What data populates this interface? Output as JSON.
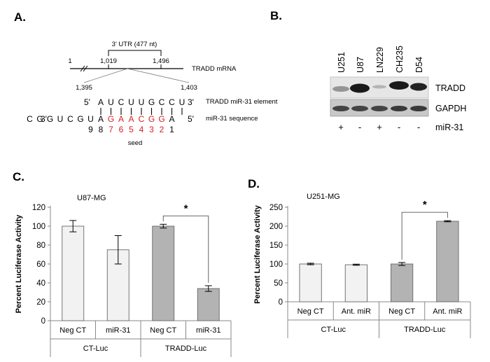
{
  "panel_a": {
    "letter": "A.",
    "utr_label": "3' UTR (477 nt)",
    "mrna_label": "TRADD mRNA",
    "pos_1": "1",
    "pos_1019": "1,019",
    "pos_1496": "1,496",
    "pos_1395": "1,395",
    "pos_1403": "1,403",
    "five_prime": "5'",
    "three_prime": "3'",
    "three_prime_left": "3'",
    "five_prime_right": "5'",
    "tradd_seq": [
      "A",
      "U",
      "C",
      "U",
      "U",
      "G",
      "C",
      "C",
      "U"
    ],
    "mir_seq_black": [
      "C",
      "G",
      "G",
      "U",
      "C",
      "G",
      "U",
      "A"
    ],
    "mir_seq_red": [
      "G",
      "A",
      "A",
      "C",
      "G",
      "G"
    ],
    "mir_seq_tail": "A",
    "element_label": "TRADD miR-31 element",
    "mir_label": "miR-31 sequence",
    "numbers_black": [
      "9",
      "8"
    ],
    "numbers_red": [
      "7",
      "6",
      "5",
      "4",
      "3",
      "2"
    ],
    "number_last": "1",
    "seed_label": "seed"
  },
  "panel_b": {
    "letter": "B.",
    "lanes": [
      "U251",
      "U87",
      "LN229",
      "CH235",
      "D54"
    ],
    "band_labels": [
      "TRADD",
      "GAPDH"
    ],
    "mir_row_label": "miR-31",
    "mir_row_values": [
      "+",
      "-",
      "+",
      "-",
      "-"
    ]
  },
  "chart_data": [
    {
      "panel": "C.",
      "type": "bar",
      "title": "U87-MG",
      "ylabel": "Percent Luciferase Activity",
      "ylim": [
        0,
        120
      ],
      "yticks": [
        0,
        20,
        40,
        60,
        80,
        100,
        120
      ],
      "categories": [
        "Neg CT",
        "miR-31",
        "Neg CT",
        "miR-31"
      ],
      "groups": [
        "CT-Luc",
        "TRADD-Luc"
      ],
      "values": [
        100,
        75,
        100,
        34
      ],
      "errors": [
        6,
        15,
        2,
        3
      ],
      "colors": [
        "#f2f2f2",
        "#f2f2f2",
        "#b3b3b3",
        "#b3b3b3"
      ],
      "significance": "*"
    },
    {
      "panel": "D.",
      "type": "bar",
      "title": "U251-MG",
      "ylabel": "Percent Luciferase Activity",
      "ylim": [
        0,
        250
      ],
      "yticks": [
        0,
        50,
        100,
        150,
        200,
        250
      ],
      "categories": [
        "Neg CT",
        "Ant. miR",
        "Neg CT",
        "Ant. miR"
      ],
      "groups": [
        "CT-Luc",
        "TRADD-Luc"
      ],
      "values": [
        100,
        98,
        100,
        213
      ],
      "errors": [
        2,
        1.5,
        4,
        1.5
      ],
      "colors": [
        "#f2f2f2",
        "#f2f2f2",
        "#b3b3b3",
        "#b3b3b3"
      ],
      "significance": "*"
    }
  ]
}
